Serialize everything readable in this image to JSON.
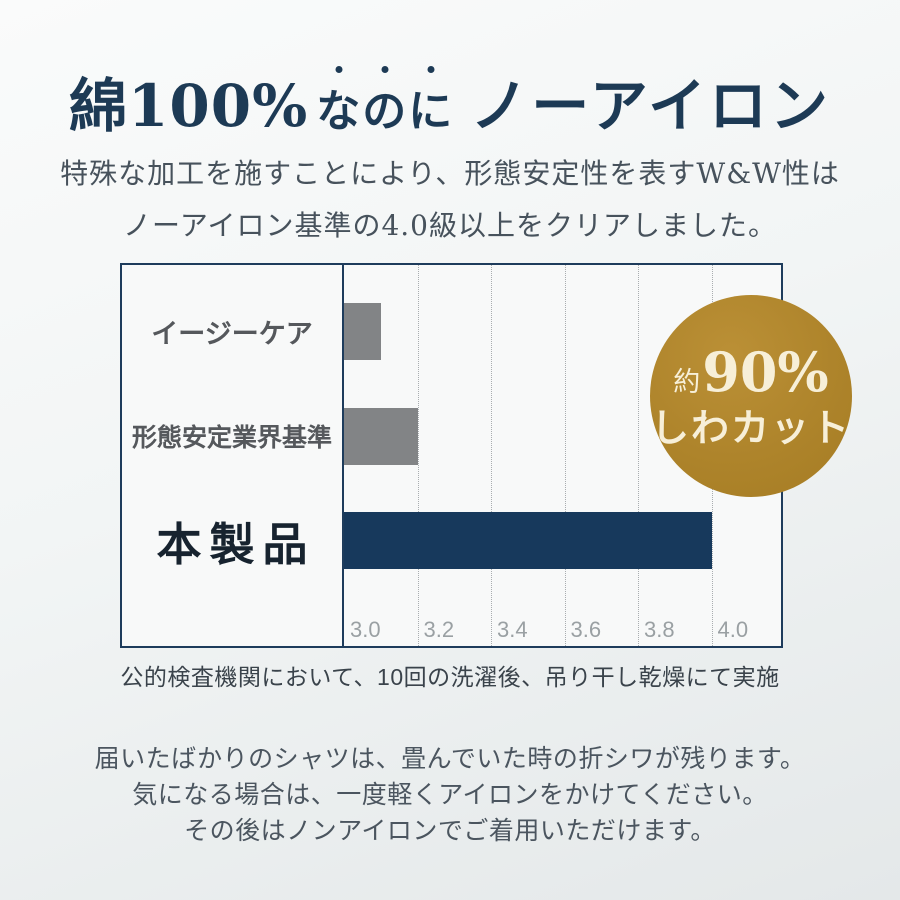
{
  "header": {
    "title_part1": "綿100%",
    "title_emphasis": "なのに",
    "title_part2": "ノーアイロン",
    "subtitle_line1": "特殊な加工を施すことにより、形態安定性を表すW&W性は",
    "subtitle_line2": "ノーアイロン基準の4.0級以上をクリアしました。"
  },
  "badge": {
    "prefix": "約",
    "value": "90%",
    "label": "しわカット",
    "bg_color": "#ae842b",
    "text_color": "#f7efd8"
  },
  "chart_data": {
    "type": "bar",
    "orientation": "horizontal",
    "title": "",
    "categories": [
      "イージーケア",
      "形態安定業界基準",
      "本製品"
    ],
    "values": [
      3.1,
      3.2,
      4.0
    ],
    "highlight_index": 2,
    "bar_colors": [
      "#828486",
      "#828486",
      "#17395c"
    ],
    "xlim": [
      3.0,
      4.2
    ],
    "xticks": [
      3.0,
      3.2,
      3.4,
      3.6,
      3.8,
      4.0
    ],
    "grid": "dotted vertical gridlines",
    "legend": "none"
  },
  "caption": "公的検査機関において、10回の洗濯後、吊り干し乾燥にて実施",
  "footer": {
    "line1": "届いたばかりのシャツは、畳んでいた時の折シワが残ります。",
    "line2": "気になる場合は、一度軽くアイロンをかけてください。",
    "line3": "その後はノンアイロンでご着用いただけます。"
  },
  "colors": {
    "title_navy": "#1d3a55",
    "axis_navy": "#1e3c5c",
    "bar_navy": "#17395c",
    "bar_gray": "#828486",
    "badge_gold": "#ae842b",
    "page_bg_top": "#fafbfb",
    "page_bg_bottom": "#e4e8e9"
  }
}
